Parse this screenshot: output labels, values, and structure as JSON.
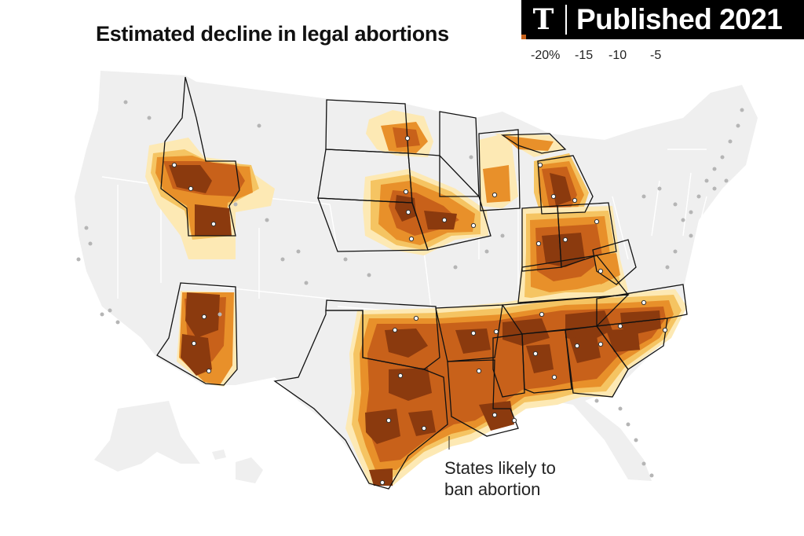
{
  "title": "Estimated decline in legal abortions",
  "badge": {
    "logo": "T",
    "text": "Published 2021"
  },
  "legend": {
    "labels": [
      "-20%",
      "-15",
      "-10",
      "-5"
    ]
  },
  "annotation": {
    "line1": "States likely to",
    "line2": "ban abortion"
  },
  "colors": {
    "land": "#efefef",
    "border": "#111111",
    "inner_border": "#ffffff",
    "city_dot": "#b5b5b5",
    "scale": [
      "#8b3a0e",
      "#c8611a",
      "#e8902a",
      "#f5c462",
      "#fde9b4"
    ]
  }
}
